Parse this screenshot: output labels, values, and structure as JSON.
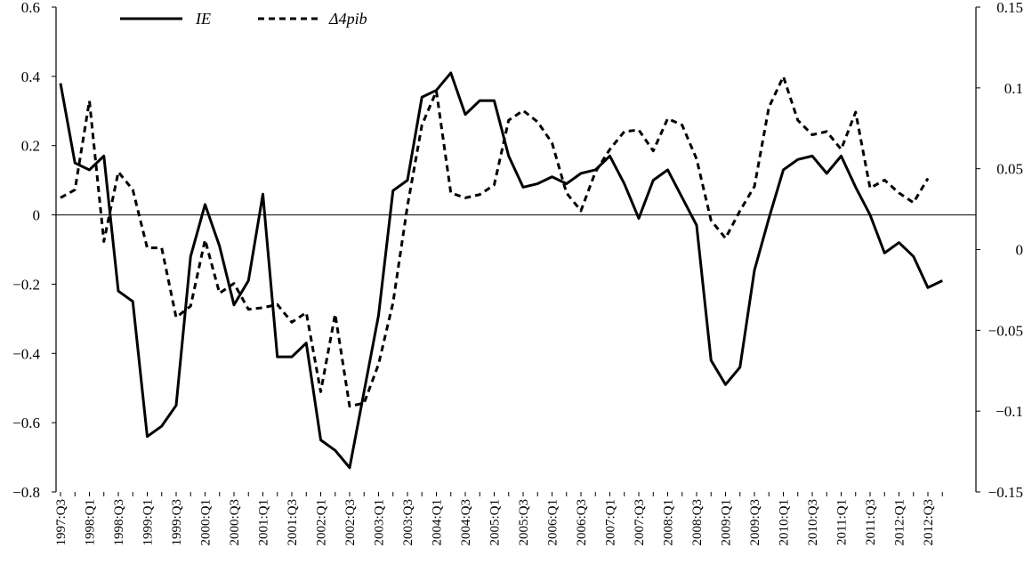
{
  "chart_data": {
    "type": "line",
    "x_tick_labels": [
      "1997:Q3",
      "1998:Q1",
      "1998:Q3",
      "1999:Q1",
      "1999:Q3",
      "2000:Q1",
      "2000:Q3",
      "2001:Q1",
      "2001:Q3",
      "2002:Q1",
      "2002:Q3",
      "2003:Q1",
      "2003:Q3",
      "2004:Q1",
      "2004:Q3",
      "2005:Q1",
      "2005:Q3",
      "2006:Q1",
      "2006:Q3",
      "2007:Q1",
      "2007:Q3",
      "2008:Q1",
      "2008:Q3",
      "2009:Q1",
      "2009:Q3",
      "2010:Q1",
      "2010:Q3",
      "2011:Q1",
      "2011:Q3",
      "2012:Q1",
      "2012:Q3"
    ],
    "left_axis": {
      "range": [
        -0.8,
        0.6
      ],
      "ticks": [
        "0.6",
        "0.4",
        "0.2",
        "0",
        "-0.2",
        "-0.4",
        "-0.6",
        "-0.8"
      ]
    },
    "right_axis": {
      "range": [
        -0.15,
        0.15
      ],
      "ticks": [
        "0.15",
        "0.1",
        "0.05",
        "0",
        "-0.05",
        "-0.1",
        "-0.15"
      ]
    },
    "legend": {
      "ie_label": "IE",
      "pib_label": "Δ4pib",
      "placement": "top-left"
    },
    "series": [
      {
        "name": "IE",
        "axis": "left",
        "style": "solid",
        "values": [
          0.38,
          0.15,
          0.13,
          0.17,
          -0.22,
          -0.25,
          -0.64,
          -0.61,
          -0.55,
          -0.12,
          0.03,
          -0.09,
          -0.26,
          -0.19,
          0.06,
          -0.41,
          -0.41,
          -0.37,
          -0.65,
          -0.68,
          -0.73,
          -0.51,
          -0.29,
          0.07,
          0.1,
          0.34,
          0.36,
          0.41,
          0.29,
          0.33,
          0.33,
          0.17,
          0.08,
          0.09,
          0.11,
          0.09,
          0.12,
          0.13,
          0.17,
          0.09,
          -0.01,
          0.1,
          0.13,
          0.05,
          -0.03,
          -0.42,
          -0.49,
          -0.44,
          -0.16,
          -0.01,
          0.13,
          0.16,
          0.17,
          0.12,
          0.17,
          0.08,
          0.0,
          -0.11,
          -0.08,
          -0.12,
          -0.21,
          -0.19
        ]
      },
      {
        "name": "Δ4pib",
        "axis": "right",
        "style": "dashed",
        "values": [
          0.032,
          0.037,
          0.092,
          0.005,
          0.048,
          0.037,
          0.001,
          0.001,
          -0.042,
          -0.035,
          0.006,
          -0.027,
          -0.021,
          -0.037,
          -0.036,
          -0.034,
          -0.045,
          -0.039,
          -0.088,
          -0.04,
          -0.097,
          -0.095,
          -0.071,
          -0.033,
          0.027,
          0.077,
          0.098,
          0.035,
          0.032,
          0.034,
          0.04,
          0.08,
          0.086,
          0.079,
          0.066,
          0.035,
          0.024,
          0.048,
          0.062,
          0.073,
          0.074,
          0.061,
          0.081,
          0.077,
          0.056,
          0.018,
          0.007,
          0.024,
          0.039,
          0.088,
          0.107,
          0.08,
          0.071,
          0.073,
          0.062,
          0.085,
          0.038,
          0.043,
          0.035,
          0.029,
          0.044
        ]
      }
    ]
  }
}
